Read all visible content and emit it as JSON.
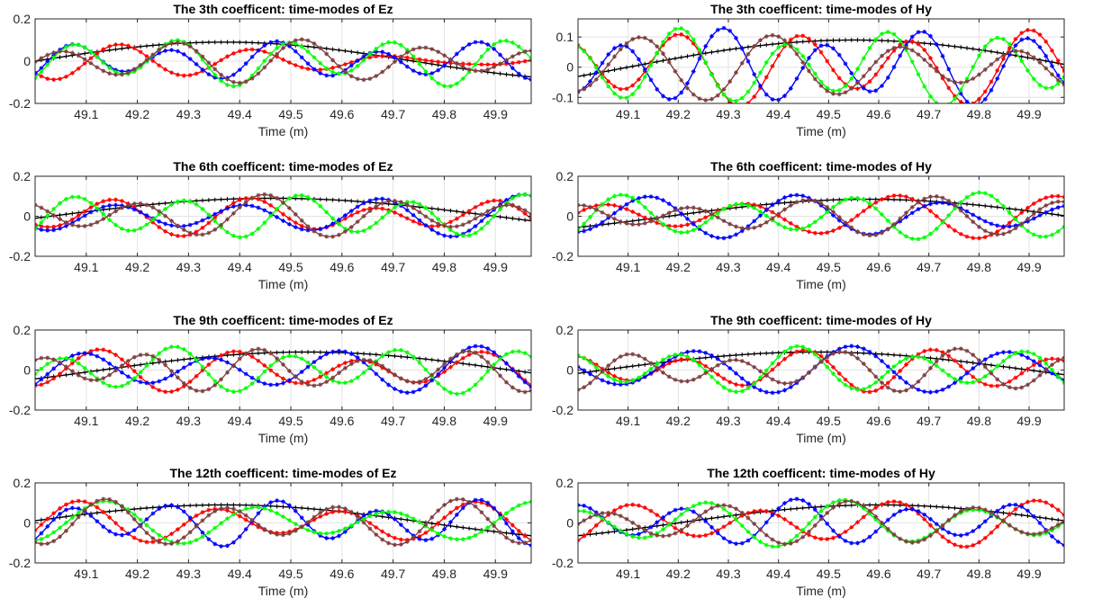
{
  "chart_data": [
    {
      "type": "line",
      "title": "The 3th coefficent: time-modes of Ez",
      "xlabel": "Time (m)",
      "ylabel": "",
      "xlim": [
        49.0,
        49.97
      ],
      "ylim": [
        -0.2,
        0.2
      ],
      "xticks": [
        "49.1",
        "49.2",
        "49.3",
        "49.4",
        "49.5",
        "49.6",
        "49.7",
        "49.8",
        "49.9"
      ],
      "yticks": [
        "-0.2",
        "0",
        "0.2"
      ],
      "grid": true,
      "series": [
        {
          "color": "#000000",
          "marker": "+",
          "waves": [
            {
              "a": 0.09,
              "p": 1.48,
              "ph": 49.0
            }
          ]
        },
        {
          "color": "#ff0000",
          "marker": "*",
          "waves": [
            {
              "a": 0.055,
              "p": 0.27,
              "ph": 49.12
            },
            {
              "a": 0.04,
              "p": 0.24,
              "ph": 49.08
            }
          ]
        },
        {
          "color": "#0000ff",
          "marker": "*",
          "waves": [
            {
              "a": 0.07,
              "p": 0.2,
              "ph": 49.22
            },
            {
              "a": 0.025,
              "p": 0.35,
              "ph": 49.05
            }
          ]
        },
        {
          "color": "#00ff00",
          "marker": "*",
          "waves": [
            {
              "a": 0.09,
              "p": 0.21,
              "ph": 49.23
            },
            {
              "a": 0.03,
              "p": 0.4,
              "ph": 49.1
            }
          ]
        },
        {
          "color": "#7f3f3f",
          "marker": "*",
          "waves": [
            {
              "a": 0.075,
              "p": 0.23,
              "ph": 49.0
            },
            {
              "a": 0.03,
              "p": 0.31,
              "ph": 49.15
            }
          ]
        }
      ]
    },
    {
      "type": "line",
      "title": "The 3th coefficent: time-modes of Hy",
      "xlabel": "Time (m)",
      "ylabel": "",
      "xlim": [
        49.0,
        49.97
      ],
      "ylim": [
        -0.12,
        0.16
      ],
      "xticks": [
        "49.1",
        "49.2",
        "49.3",
        "49.4",
        "49.5",
        "49.6",
        "49.7",
        "49.8",
        "49.9"
      ],
      "yticks": [
        "-0.1",
        "0",
        "0.1"
      ],
      "grid": true,
      "series": [
        {
          "color": "#000000",
          "marker": "+",
          "waves": [
            {
              "a": 0.09,
              "p": 1.8,
              "ph": 49.1
            }
          ]
        },
        {
          "color": "#ff0000",
          "marker": "*",
          "waves": [
            {
              "a": 0.1,
              "p": 0.23,
              "ph": 49.15
            },
            {
              "a": 0.03,
              "p": 0.41,
              "ph": 49.02
            }
          ]
        },
        {
          "color": "#0000ff",
          "marker": "*",
          "waves": [
            {
              "a": 0.1,
              "p": 0.2,
              "ph": 49.04
            },
            {
              "a": 0.03,
              "p": 0.35,
              "ph": 49.2
            }
          ]
        },
        {
          "color": "#00ff00",
          "marker": "*",
          "waves": [
            {
              "a": 0.1,
              "p": 0.21,
              "ph": 48.94
            },
            {
              "a": 0.03,
              "p": 0.37,
              "ph": 49.1
            }
          ]
        },
        {
          "color": "#7f3f3f",
          "marker": "*",
          "waves": [
            {
              "a": 0.08,
              "p": 0.25,
              "ph": 49.07
            },
            {
              "a": 0.03,
              "p": 0.33,
              "ph": 49.0
            }
          ]
        }
      ]
    },
    {
      "type": "line",
      "title": "The 6th coefficent: time-modes of Ez",
      "xlabel": "Time (m)",
      "ylabel": "",
      "xlim": [
        49.0,
        49.97
      ],
      "ylim": [
        -0.2,
        0.2
      ],
      "xticks": [
        "49.1",
        "49.2",
        "49.3",
        "49.4",
        "49.5",
        "49.6",
        "49.7",
        "49.8",
        "49.9"
      ],
      "yticks": [
        "-0.2",
        "0",
        "0.2"
      ],
      "grid": true,
      "series": [
        {
          "color": "#000000",
          "marker": "+",
          "waves": [
            {
              "a": 0.09,
              "p": 1.74,
              "ph": 49.03
            }
          ]
        },
        {
          "color": "#ff0000",
          "marker": "*",
          "waves": [
            {
              "a": 0.07,
              "p": 0.25,
              "ph": 49.1
            },
            {
              "a": 0.03,
              "p": 0.37,
              "ph": 49.0
            }
          ]
        },
        {
          "color": "#0000ff",
          "marker": "*",
          "waves": [
            {
              "a": 0.08,
              "p": 0.27,
              "ph": 49.08
            },
            {
              "a": 0.03,
              "p": 0.33,
              "ph": 49.2
            }
          ]
        },
        {
          "color": "#00ff00",
          "marker": "*",
          "waves": [
            {
              "a": 0.09,
              "p": 0.22,
              "ph": 49.24
            },
            {
              "a": 0.02,
              "p": 0.41,
              "ph": 49.05
            }
          ]
        },
        {
          "color": "#7f3f3f",
          "marker": "*",
          "waves": [
            {
              "a": 0.08,
              "p": 0.24,
              "ph": 49.15
            },
            {
              "a": 0.03,
              "p": 0.35,
              "ph": 49.0
            }
          ]
        }
      ]
    },
    {
      "type": "line",
      "title": "The 6th coefficent: time-modes of Hy",
      "xlabel": "Time (m)",
      "ylabel": "",
      "xlim": [
        49.0,
        49.97
      ],
      "ylim": [
        -0.2,
        0.2
      ],
      "xticks": [
        "49.1",
        "49.2",
        "49.3",
        "49.4",
        "49.5",
        "49.6",
        "49.7",
        "49.8",
        "49.9"
      ],
      "yticks": [
        "-0.2",
        "0",
        "0.2"
      ],
      "grid": true,
      "series": [
        {
          "color": "#000000",
          "marker": "+",
          "waves": [
            {
              "a": 0.085,
              "p": 1.6,
              "ph": 49.18
            }
          ]
        },
        {
          "color": "#ff0000",
          "marker": "*",
          "waves": [
            {
              "a": 0.08,
              "p": 0.3,
              "ph": 48.97
            },
            {
              "a": 0.03,
              "p": 0.4,
              "ph": 49.1
            }
          ]
        },
        {
          "color": "#0000ff",
          "marker": "*",
          "waves": [
            {
              "a": 0.08,
              "p": 0.28,
              "ph": 49.36
            },
            {
              "a": 0.03,
              "p": 0.37,
              "ph": 49.0
            }
          ]
        },
        {
          "color": "#00ff00",
          "marker": "*",
          "waves": [
            {
              "a": 0.09,
              "p": 0.24,
              "ph": 49.26
            },
            {
              "a": 0.03,
              "p": 0.34,
              "ph": 49.05
            }
          ]
        },
        {
          "color": "#7f3f3f",
          "marker": "*",
          "waves": [
            {
              "a": 0.07,
              "p": 0.24,
              "ph": 49.17
            },
            {
              "a": 0.03,
              "p": 0.31,
              "ph": 49.02
            }
          ]
        }
      ]
    },
    {
      "type": "line",
      "title": "The 9th coefficent: time-modes of Ez",
      "xlabel": "Time (m)",
      "ylabel": "",
      "xlim": [
        49.0,
        49.97
      ],
      "ylim": [
        -0.2,
        0.2
      ],
      "xticks": [
        "49.1",
        "49.2",
        "49.3",
        "49.4",
        "49.5",
        "49.6",
        "49.7",
        "49.8",
        "49.9"
      ],
      "yticks": [
        "-0.2",
        "0",
        "0.2"
      ],
      "grid": true,
      "series": [
        {
          "color": "#000000",
          "marker": "+",
          "waves": [
            {
              "a": 0.09,
              "p": 1.6,
              "ph": 49.13
            }
          ]
        },
        {
          "color": "#ff0000",
          "marker": "*",
          "waves": [
            {
              "a": 0.08,
              "p": 0.25,
              "ph": 49.07
            },
            {
              "a": 0.03,
              "p": 0.36,
              "ph": 49.0
            }
          ]
        },
        {
          "color": "#0000ff",
          "marker": "*",
          "waves": [
            {
              "a": 0.09,
              "p": 0.26,
              "ph": 49.28
            },
            {
              "a": 0.03,
              "p": 0.34,
              "ph": 49.1
            }
          ]
        },
        {
          "color": "#00ff00",
          "marker": "*",
          "waves": [
            {
              "a": 0.09,
              "p": 0.22,
              "ph": 49.0
            },
            {
              "a": 0.03,
              "p": 0.39,
              "ph": 49.15
            }
          ]
        },
        {
          "color": "#7f3f3f",
          "marker": "*",
          "waves": [
            {
              "a": 0.08,
              "p": 0.21,
              "ph": 49.17
            },
            {
              "a": 0.03,
              "p": 0.33,
              "ph": 49.05
            }
          ]
        }
      ]
    },
    {
      "type": "line",
      "title": "The 9th coefficent: time-modes of Hy",
      "xlabel": "Time (m)",
      "ylabel": "",
      "xlim": [
        49.0,
        49.97
      ],
      "ylim": [
        -0.2,
        0.2
      ],
      "xticks": [
        "49.1",
        "49.2",
        "49.3",
        "49.4",
        "49.5",
        "49.6",
        "49.7",
        "49.8",
        "49.9"
      ],
      "yticks": [
        "-0.2",
        "0",
        "0.2"
      ],
      "grid": true,
      "series": [
        {
          "color": "#000000",
          "marker": "+",
          "waves": [
            {
              "a": 0.09,
              "p": 1.7,
              "ph": 49.05
            }
          ]
        },
        {
          "color": "#ff0000",
          "marker": "*",
          "waves": [
            {
              "a": 0.08,
              "p": 0.24,
              "ph": 49.16
            },
            {
              "a": 0.03,
              "p": 0.33,
              "ph": 49.0
            }
          ]
        },
        {
          "color": "#0000ff",
          "marker": "*",
          "waves": [
            {
              "a": 0.09,
              "p": 0.3,
              "ph": 49.47
            },
            {
              "a": 0.03,
              "p": 0.4,
              "ph": 49.05
            }
          ]
        },
        {
          "color": "#00ff00",
          "marker": "*",
          "waves": [
            {
              "a": 0.09,
              "p": 0.23,
              "ph": 49.15
            },
            {
              "a": 0.03,
              "p": 0.36,
              "ph": 49.0
            }
          ]
        },
        {
          "color": "#7f3f3f",
          "marker": "*",
          "waves": [
            {
              "a": 0.08,
              "p": 0.22,
              "ph": 49.04
            },
            {
              "a": 0.03,
              "p": 0.3,
              "ph": 49.1
            }
          ]
        }
      ]
    },
    {
      "type": "line",
      "title": "The 12th coefficent: time-modes of Ez",
      "xlabel": "Time (m)",
      "ylabel": "",
      "xlim": [
        49.0,
        49.97
      ],
      "ylim": [
        -0.2,
        0.2
      ],
      "xticks": [
        "49.1",
        "49.2",
        "49.3",
        "49.4",
        "49.5",
        "49.6",
        "49.7",
        "49.8",
        "49.9"
      ],
      "yticks": [
        "-0.2",
        "0",
        "0.2"
      ],
      "grid": true,
      "series": [
        {
          "color": "#000000",
          "marker": "+",
          "waves": [
            {
              "a": 0.09,
              "p": 1.6,
              "ph": 48.97
            }
          ]
        },
        {
          "color": "#ff0000",
          "marker": "*",
          "waves": [
            {
              "a": 0.08,
              "p": 0.26,
              "ph": 49.54
            },
            {
              "a": 0.03,
              "p": 0.37,
              "ph": 49.0
            }
          ]
        },
        {
          "color": "#0000ff",
          "marker": "*",
          "waves": [
            {
              "a": 0.09,
              "p": 0.2,
              "ph": 49.22
            },
            {
              "a": 0.03,
              "p": 0.33,
              "ph": 49.1
            }
          ]
        },
        {
          "color": "#00ff00",
          "marker": "*",
          "waves": [
            {
              "a": 0.08,
              "p": 0.28,
              "ph": 49.07
            },
            {
              "a": 0.03,
              "p": 0.41,
              "ph": 49.02
            }
          ]
        },
        {
          "color": "#7f3f3f",
          "marker": "*",
          "waves": [
            {
              "a": 0.09,
              "p": 0.23,
              "ph": 49.31
            },
            {
              "a": 0.03,
              "p": 0.35,
              "ph": 49.05
            }
          ]
        }
      ]
    },
    {
      "type": "line",
      "title": "The 12th coefficent: time-modes of Hy",
      "xlabel": "Time (m)",
      "ylabel": "",
      "xlim": [
        49.0,
        49.97
      ],
      "ylim": [
        -0.2,
        0.2
      ],
      "xticks": [
        "49.1",
        "49.2",
        "49.3",
        "49.4",
        "49.5",
        "49.6",
        "49.7",
        "49.8",
        "49.9"
      ],
      "yticks": [
        "-0.2",
        "0",
        "0.2"
      ],
      "grid": true,
      "series": [
        {
          "color": "#000000",
          "marker": "+",
          "waves": [
            {
              "a": 0.09,
              "p": 1.6,
              "ph": 49.2
            }
          ]
        },
        {
          "color": "#ff0000",
          "marker": "*",
          "waves": [
            {
              "a": 0.09,
              "p": 0.27,
              "ph": 49.03
            },
            {
              "a": 0.03,
              "p": 0.38,
              "ph": 49.1
            }
          ]
        },
        {
          "color": "#0000ff",
          "marker": "*",
          "waves": [
            {
              "a": 0.09,
              "p": 0.22,
              "ph": 49.16
            },
            {
              "a": 0.03,
              "p": 0.35,
              "ph": 49.0
            }
          ]
        },
        {
          "color": "#00ff00",
          "marker": "*",
          "waves": [
            {
              "a": 0.09,
              "p": 0.26,
              "ph": 48.94
            },
            {
              "a": 0.03,
              "p": 0.37,
              "ph": 49.1
            }
          ]
        },
        {
          "color": "#7f3f3f",
          "marker": "*",
          "waves": [
            {
              "a": 0.08,
              "p": 0.24,
              "ph": 49.0
            },
            {
              "a": 0.03,
              "p": 0.32,
              "ph": 49.15
            }
          ]
        }
      ]
    }
  ]
}
